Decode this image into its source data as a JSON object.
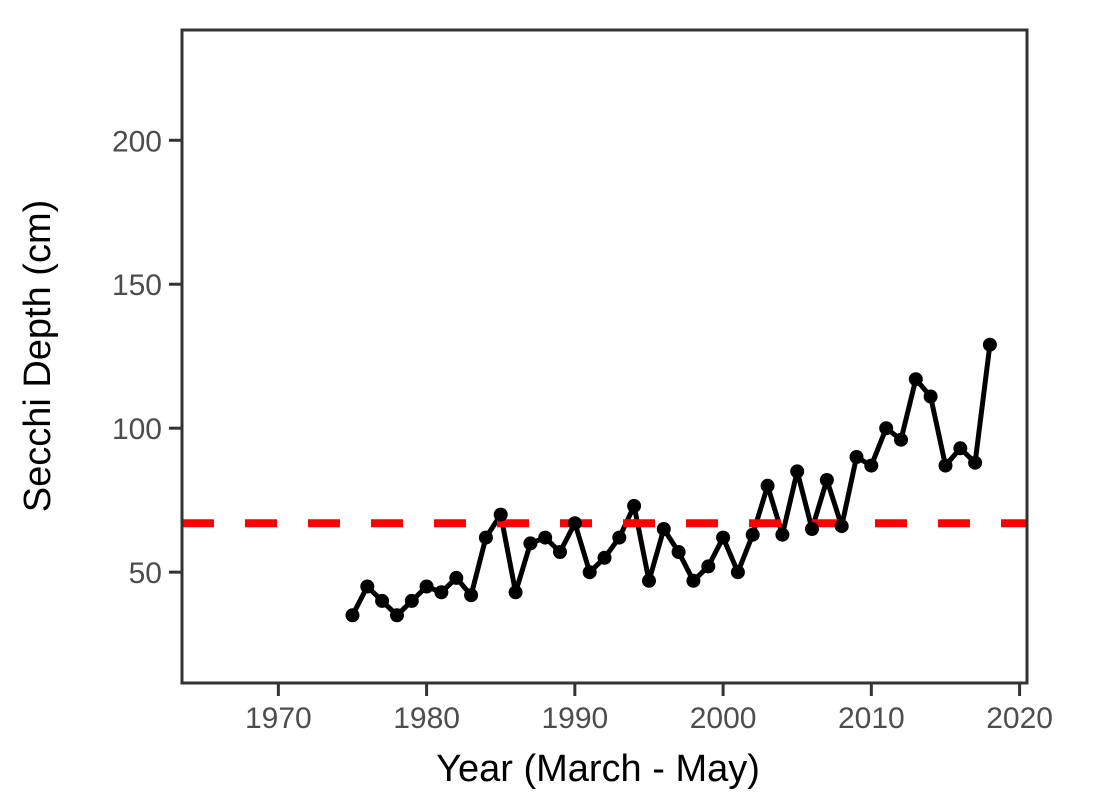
{
  "chart_data": {
    "type": "line",
    "title": "",
    "xlabel": "Year (March - May)",
    "ylabel": "Secchi Depth (cm)",
    "x_ticks": [
      1970,
      1980,
      1990,
      2000,
      2010,
      2020
    ],
    "x_tick_labels": [
      "1970",
      "1980",
      "1990",
      "2000",
      "2010",
      "2020"
    ],
    "y_ticks": [
      50,
      100,
      150,
      200
    ],
    "y_tick_labels": [
      "50",
      "100",
      "150",
      "200"
    ],
    "xlim": [
      1963.5,
      2020.5
    ],
    "ylim": [
      11.5,
      238.3
    ],
    "grid": false,
    "legend": false,
    "marker": "filled-circle",
    "reference_line": {
      "y": 67,
      "style": "dashed",
      "color": "#FF0000"
    },
    "series": [
      {
        "name": "Secchi Depth (cm)",
        "x": [
          1975,
          1976,
          1977,
          1978,
          1979,
          1980,
          1981,
          1982,
          1983,
          1984,
          1985,
          1986,
          1987,
          1988,
          1989,
          1990,
          1991,
          1992,
          1993,
          1994,
          1995,
          1996,
          1997,
          1998,
          1999,
          2000,
          2001,
          2002,
          2003,
          2004,
          2005,
          2006,
          2007,
          2008,
          2009,
          2010,
          2011,
          2012,
          2013,
          2014,
          2015,
          2016,
          2017,
          2018
        ],
        "y": [
          35,
          45,
          40,
          35,
          40,
          45,
          43,
          48,
          42,
          62,
          70,
          43,
          60,
          62,
          57,
          67,
          50,
          55,
          62,
          73,
          47,
          65,
          57,
          47,
          52,
          62,
          50,
          63,
          80,
          63,
          85,
          65,
          82,
          66,
          90,
          87,
          100,
          96,
          117,
          111,
          87,
          93,
          88,
          129
        ]
      }
    ]
  },
  "colors": {
    "series": "#000000",
    "reference_line": "#FF0000",
    "tick_label": "#4d4d4d",
    "axis": "#333333",
    "axis_title": "#000000",
    "background": "#ffffff"
  }
}
